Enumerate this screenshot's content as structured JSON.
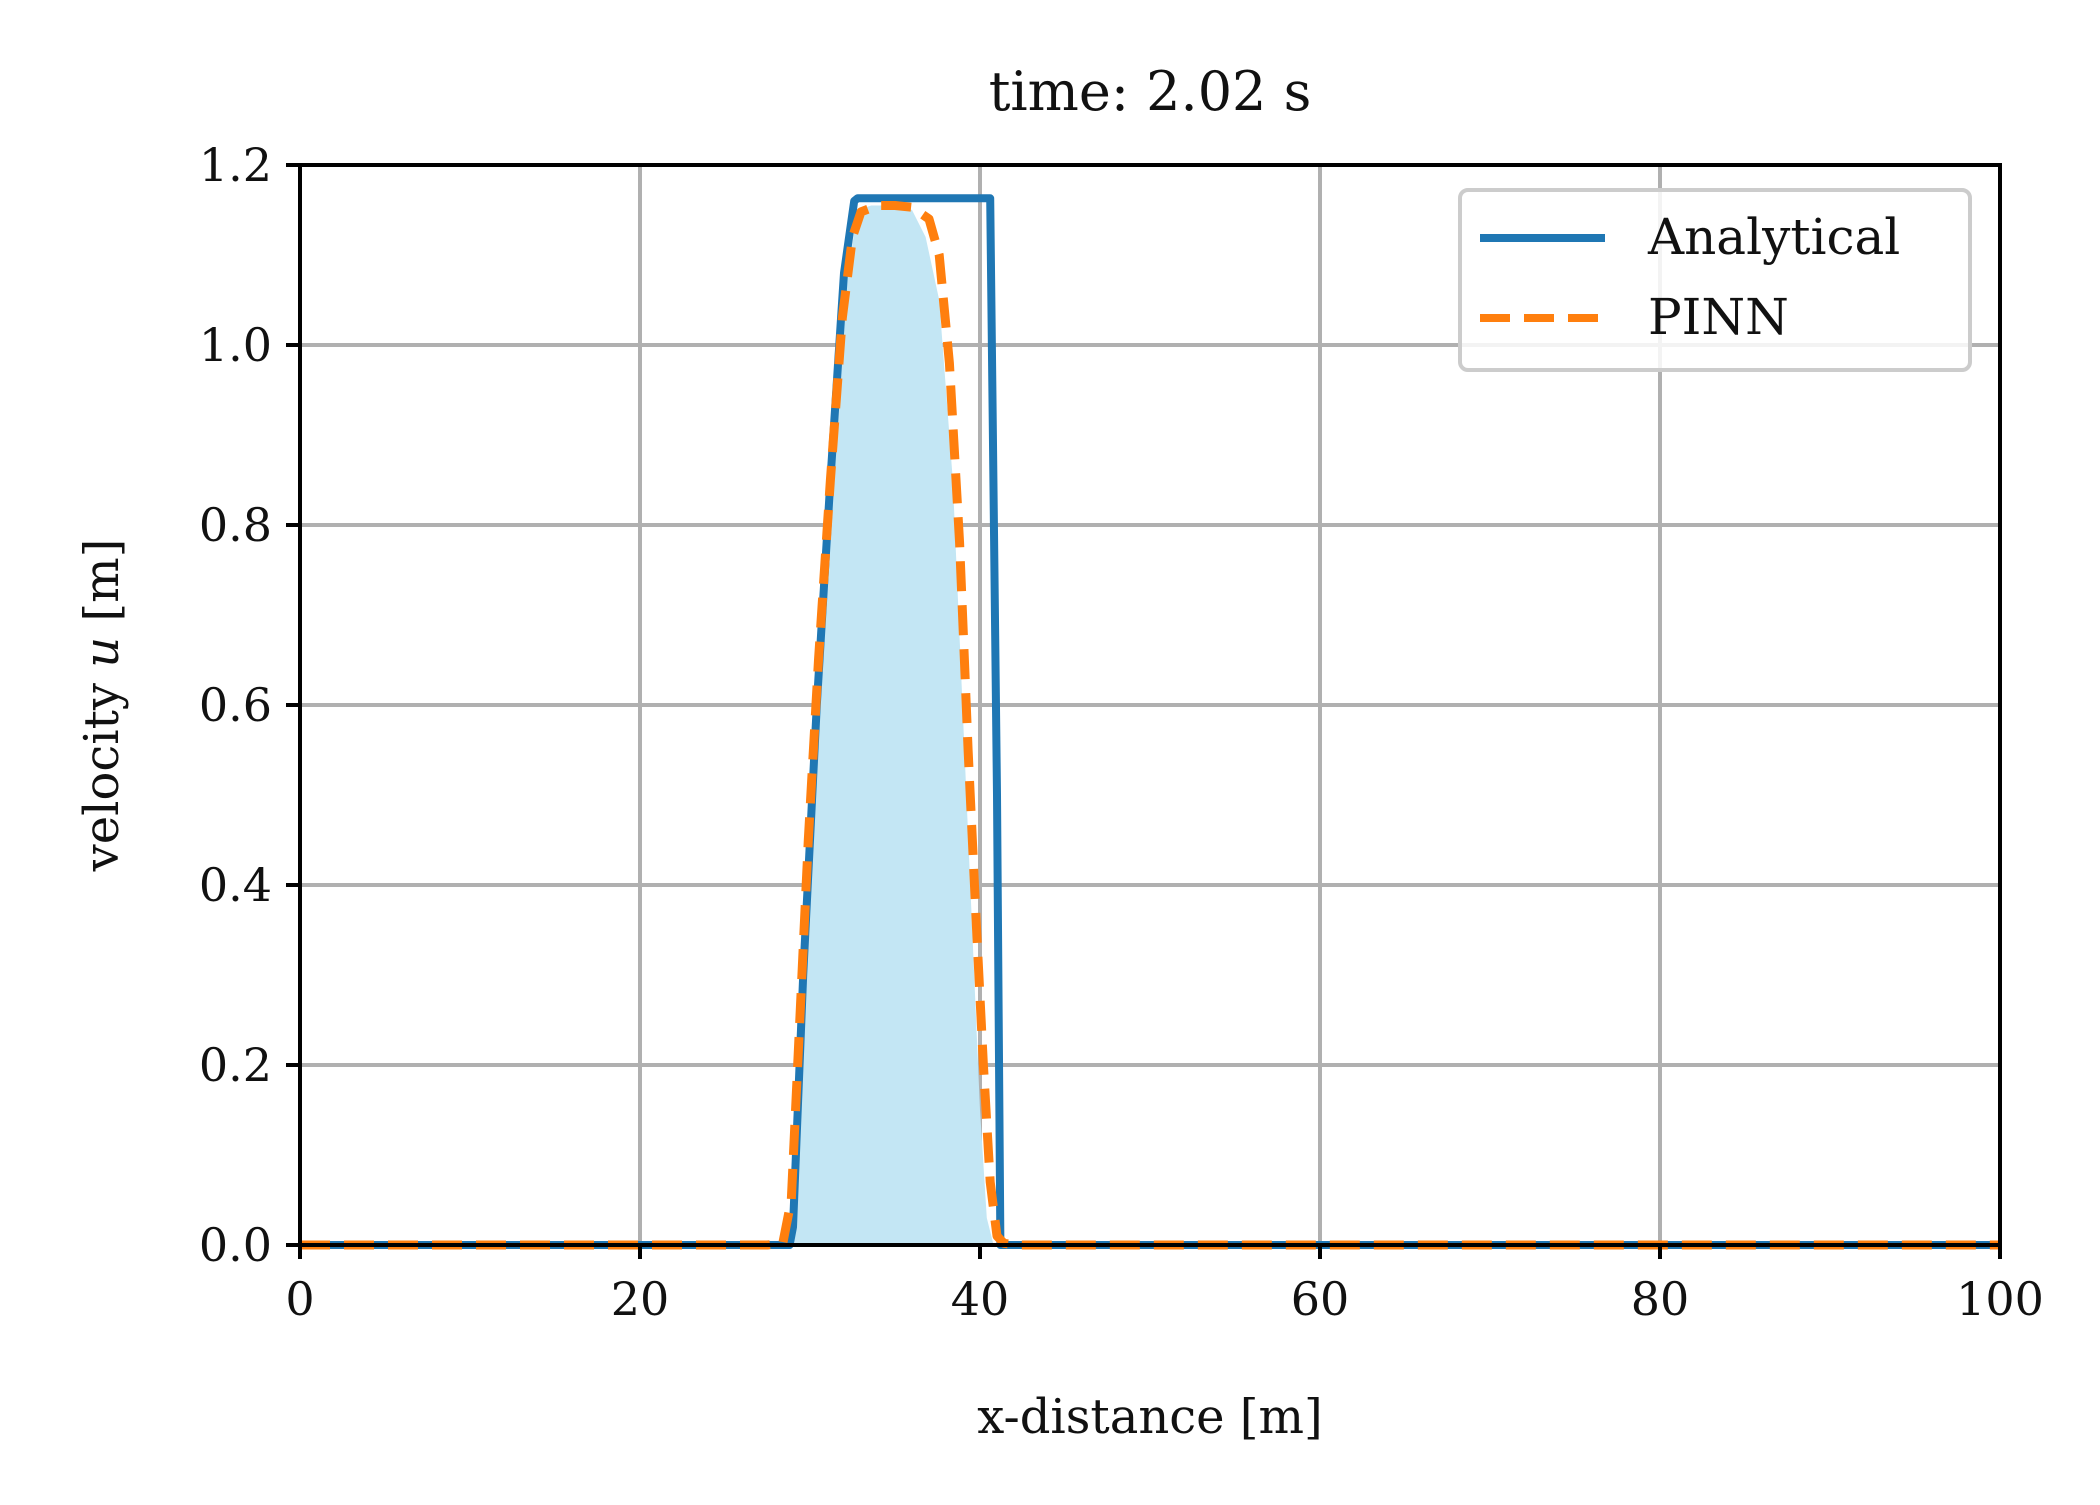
{
  "chart_data": {
    "type": "line",
    "title": "time: 2.02 s",
    "xlabel": "x-distance [m]",
    "ylabel_prefix": "velocity ",
    "ylabel_var": "u",
    "ylabel_suffix": " [m]",
    "xlim": [
      0,
      100
    ],
    "ylim": [
      0,
      1.2
    ],
    "xticks": [
      0,
      20,
      40,
      60,
      80,
      100
    ],
    "xtick_labels": [
      "0",
      "20",
      "40",
      "60",
      "80",
      "100"
    ],
    "yticks": [
      0,
      0.2,
      0.4,
      0.6,
      0.8,
      1.0,
      1.2
    ],
    "ytick_labels": [
      "0.0",
      "0.2",
      "0.4",
      "0.6",
      "0.8",
      "1.0",
      "1.2"
    ],
    "grid": true,
    "legend_position": "top-right",
    "fill": {
      "color": "#c3e6f4",
      "x": [
        28.8,
        29.6,
        30.4,
        31.2,
        32.0,
        32.8,
        33.6,
        34.4,
        35.2,
        36.0,
        36.8,
        37.6,
        38.4,
        39.2,
        40.0,
        40.4,
        40.8
      ],
      "y": [
        0.0,
        0.3,
        0.55,
        0.8,
        1.05,
        1.15,
        1.155,
        1.155,
        1.155,
        1.15,
        1.12,
        1.05,
        0.85,
        0.5,
        0.15,
        0.03,
        0.0
      ]
    },
    "series": [
      {
        "name": "Analytical",
        "color": "#1f77b4",
        "style": "solid",
        "x": [
          0,
          28.8,
          29.0,
          29.6,
          30.4,
          31.2,
          32.0,
          32.6,
          32.8,
          40.6,
          41.0,
          41.2,
          100
        ],
        "y": [
          0,
          0,
          0.02,
          0.3,
          0.6,
          0.85,
          1.08,
          1.16,
          1.163,
          1.163,
          0.5,
          0,
          0
        ]
      },
      {
        "name": "PINN",
        "color": "#ff7f0e",
        "style": "dashed",
        "x": [
          0,
          27.5,
          28.4,
          28.9,
          29.4,
          29.9,
          30.5,
          31.2,
          31.9,
          32.5,
          33.0,
          34.0,
          35.0,
          36.0,
          37.0,
          37.6,
          38.2,
          38.8,
          39.3,
          39.8,
          40.2,
          40.6,
          41.0,
          41.4,
          42.0,
          100
        ],
        "y": [
          0,
          0,
          0.002,
          0.05,
          0.25,
          0.45,
          0.65,
          0.85,
          1.03,
          1.12,
          1.148,
          1.155,
          1.155,
          1.153,
          1.14,
          1.1,
          0.98,
          0.78,
          0.55,
          0.35,
          0.2,
          0.07,
          0.01,
          0.002,
          0,
          0
        ]
      }
    ]
  }
}
